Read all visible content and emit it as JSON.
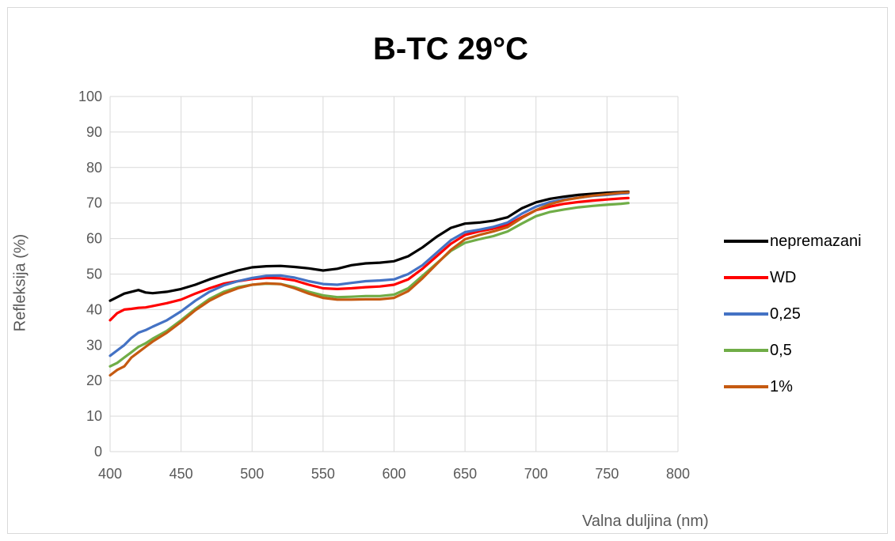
{
  "chart_data": {
    "type": "line",
    "title": "B-TC 29°C",
    "xlabel": "Valna duljina (nm)",
    "ylabel": "Refleksija (%)",
    "xlim": [
      400,
      800
    ],
    "ylim": [
      0,
      100
    ],
    "xticks": [
      "400",
      "450",
      "500",
      "550",
      "600",
      "650",
      "700",
      "750",
      "800"
    ],
    "yticks": [
      "0",
      "10",
      "20",
      "30",
      "40",
      "50",
      "60",
      "70",
      "80",
      "90",
      "100"
    ],
    "grid": true,
    "legend_position": "right",
    "series": [
      {
        "name": "nepremazani",
        "color": "#000000",
        "x": [
          400,
          405,
          410,
          415,
          420,
          425,
          430,
          440,
          450,
          460,
          470,
          480,
          490,
          500,
          510,
          520,
          530,
          540,
          550,
          560,
          570,
          580,
          590,
          600,
          610,
          620,
          630,
          640,
          650,
          660,
          670,
          680,
          690,
          700,
          710,
          720,
          730,
          740,
          750,
          760,
          765
        ],
        "y": [
          42.5,
          43.5,
          44.5,
          45.0,
          45.5,
          44.8,
          44.6,
          45.0,
          45.8,
          47.0,
          48.5,
          49.8,
          51.0,
          51.9,
          52.2,
          52.3,
          52.0,
          51.6,
          51.0,
          51.5,
          52.5,
          53.0,
          53.2,
          53.6,
          55.0,
          57.5,
          60.5,
          63.0,
          64.2,
          64.5,
          65.0,
          66.0,
          68.5,
          70.2,
          71.2,
          71.8,
          72.3,
          72.6,
          72.9,
          73.1,
          73.2
        ]
      },
      {
        "name": "WD",
        "color": "#ff0000",
        "x": [
          400,
          405,
          410,
          415,
          420,
          425,
          430,
          440,
          450,
          460,
          470,
          480,
          490,
          500,
          510,
          520,
          530,
          540,
          550,
          560,
          570,
          580,
          590,
          600,
          610,
          620,
          630,
          640,
          650,
          660,
          670,
          680,
          690,
          700,
          710,
          720,
          730,
          740,
          750,
          760,
          765
        ],
        "y": [
          37.0,
          39.0,
          40.0,
          40.2,
          40.5,
          40.6,
          41.0,
          41.8,
          42.8,
          44.5,
          46.0,
          47.3,
          48.0,
          48.6,
          48.9,
          48.8,
          48.2,
          47.0,
          46.0,
          45.8,
          46.0,
          46.3,
          46.5,
          47.0,
          48.5,
          51.5,
          55.0,
          58.5,
          61.0,
          62.0,
          62.8,
          63.8,
          66.0,
          68.0,
          69.0,
          69.8,
          70.3,
          70.7,
          71.0,
          71.3,
          71.4
        ]
      },
      {
        "name": "0,25",
        "color": "#4472c4",
        "x": [
          400,
          405,
          410,
          415,
          420,
          425,
          430,
          440,
          450,
          460,
          470,
          480,
          490,
          500,
          510,
          520,
          530,
          540,
          550,
          560,
          570,
          580,
          590,
          600,
          610,
          620,
          630,
          640,
          650,
          660,
          670,
          680,
          690,
          700,
          710,
          720,
          730,
          740,
          750,
          760,
          765
        ],
        "y": [
          27.0,
          28.5,
          30.0,
          32.0,
          33.5,
          34.2,
          35.2,
          37.0,
          39.5,
          42.5,
          45.0,
          46.8,
          48.0,
          48.9,
          49.5,
          49.6,
          49.0,
          48.0,
          47.2,
          47.0,
          47.5,
          48.0,
          48.2,
          48.5,
          50.0,
          52.5,
          56.0,
          59.5,
          61.8,
          62.5,
          63.3,
          64.5,
          67.0,
          69.0,
          70.3,
          71.0,
          71.5,
          72.0,
          72.3,
          72.7,
          72.8
        ]
      },
      {
        "name": "0,5",
        "color": "#70ad47",
        "x": [
          400,
          405,
          410,
          415,
          420,
          425,
          430,
          440,
          450,
          460,
          470,
          480,
          490,
          500,
          510,
          520,
          530,
          540,
          550,
          560,
          570,
          580,
          590,
          600,
          610,
          620,
          630,
          640,
          650,
          660,
          670,
          680,
          690,
          700,
          710,
          720,
          730,
          740,
          750,
          760,
          765
        ],
        "y": [
          24.0,
          25.0,
          26.5,
          28.0,
          29.5,
          30.5,
          31.8,
          34.0,
          37.0,
          40.2,
          43.0,
          45.0,
          46.3,
          47.0,
          47.3,
          47.2,
          46.3,
          45.0,
          44.0,
          43.5,
          43.6,
          43.8,
          43.8,
          44.2,
          46.0,
          49.5,
          53.0,
          56.5,
          58.8,
          59.8,
          60.7,
          62.0,
          64.2,
          66.3,
          67.5,
          68.2,
          68.8,
          69.2,
          69.5,
          69.8,
          70.0
        ]
      },
      {
        "name": "1%",
        "color": "#c55a11",
        "x": [
          400,
          405,
          410,
          415,
          420,
          425,
          430,
          440,
          450,
          460,
          470,
          480,
          490,
          500,
          510,
          520,
          530,
          540,
          550,
          560,
          570,
          580,
          590,
          600,
          610,
          620,
          630,
          640,
          650,
          660,
          670,
          680,
          690,
          700,
          710,
          720,
          730,
          740,
          750,
          760,
          765
        ],
        "y": [
          21.5,
          23.0,
          24.0,
          26.5,
          28.0,
          29.5,
          31.0,
          33.5,
          36.5,
          39.8,
          42.5,
          44.5,
          46.0,
          47.0,
          47.4,
          47.2,
          46.0,
          44.5,
          43.3,
          42.8,
          42.8,
          42.9,
          42.9,
          43.3,
          45.2,
          48.8,
          52.8,
          56.8,
          59.8,
          61.0,
          62.0,
          63.2,
          65.8,
          68.0,
          69.7,
          70.8,
          71.5,
          72.1,
          72.5,
          72.9,
          73.0
        ]
      }
    ]
  }
}
